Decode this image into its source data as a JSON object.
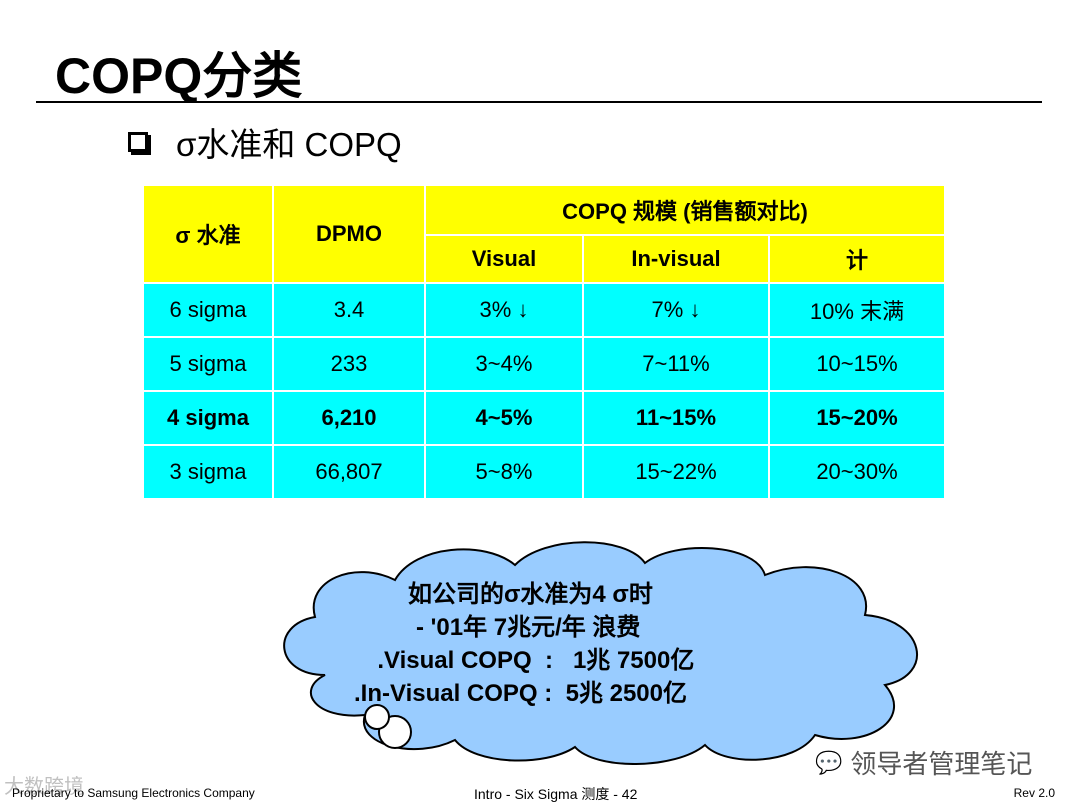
{
  "title": "COPQ分类",
  "bullet": "σ水准和 COPQ",
  "table": {
    "header_row1": {
      "sigma": "σ 水准",
      "dpmo": "DPMO",
      "copq": "COPQ 规模 (销售额对比)"
    },
    "header_row2": {
      "visual": "Visual",
      "invisual": "In-visual",
      "total": "计"
    },
    "rows": [
      {
        "sigma": "6 sigma",
        "dpmo": "3.4",
        "visual": "3% ↓",
        "invisual": "7% ↓",
        "total": "10% 末满"
      },
      {
        "sigma": "5 sigma",
        "dpmo": "233",
        "visual": "3~4%",
        "invisual": "7~11%",
        "total": "10~15%"
      },
      {
        "sigma": "4 sigma",
        "dpmo": "6,210",
        "visual": "4~5%",
        "invisual": "11~15%",
        "total": "15~20%"
      },
      {
        "sigma": "3 sigma",
        "dpmo": "66,807",
        "visual": "5~8%",
        "invisual": "15~22%",
        "total": "20~30%"
      }
    ],
    "header_color": "#ffff00",
    "body_color": "#00ffff"
  },
  "cloud": {
    "color": "#99ccff",
    "lines": [
      "如公司的σ水准为4 σ时",
      "- '01年 7兆元/年 浪费",
      "  .Visual COPQ  :   1兆 7500亿",
      ".In-Visual COPQ :  5兆 2500亿"
    ]
  },
  "footer": {
    "left": "Proprietary to Samsung Electronics Company",
    "center": "Intro - Six Sigma 测度 - 42",
    "right": "Rev 2.0"
  },
  "watermark": {
    "icon": "wechat-icon",
    "text": "领导者管理笔记",
    "corner": "大数跨境"
  }
}
